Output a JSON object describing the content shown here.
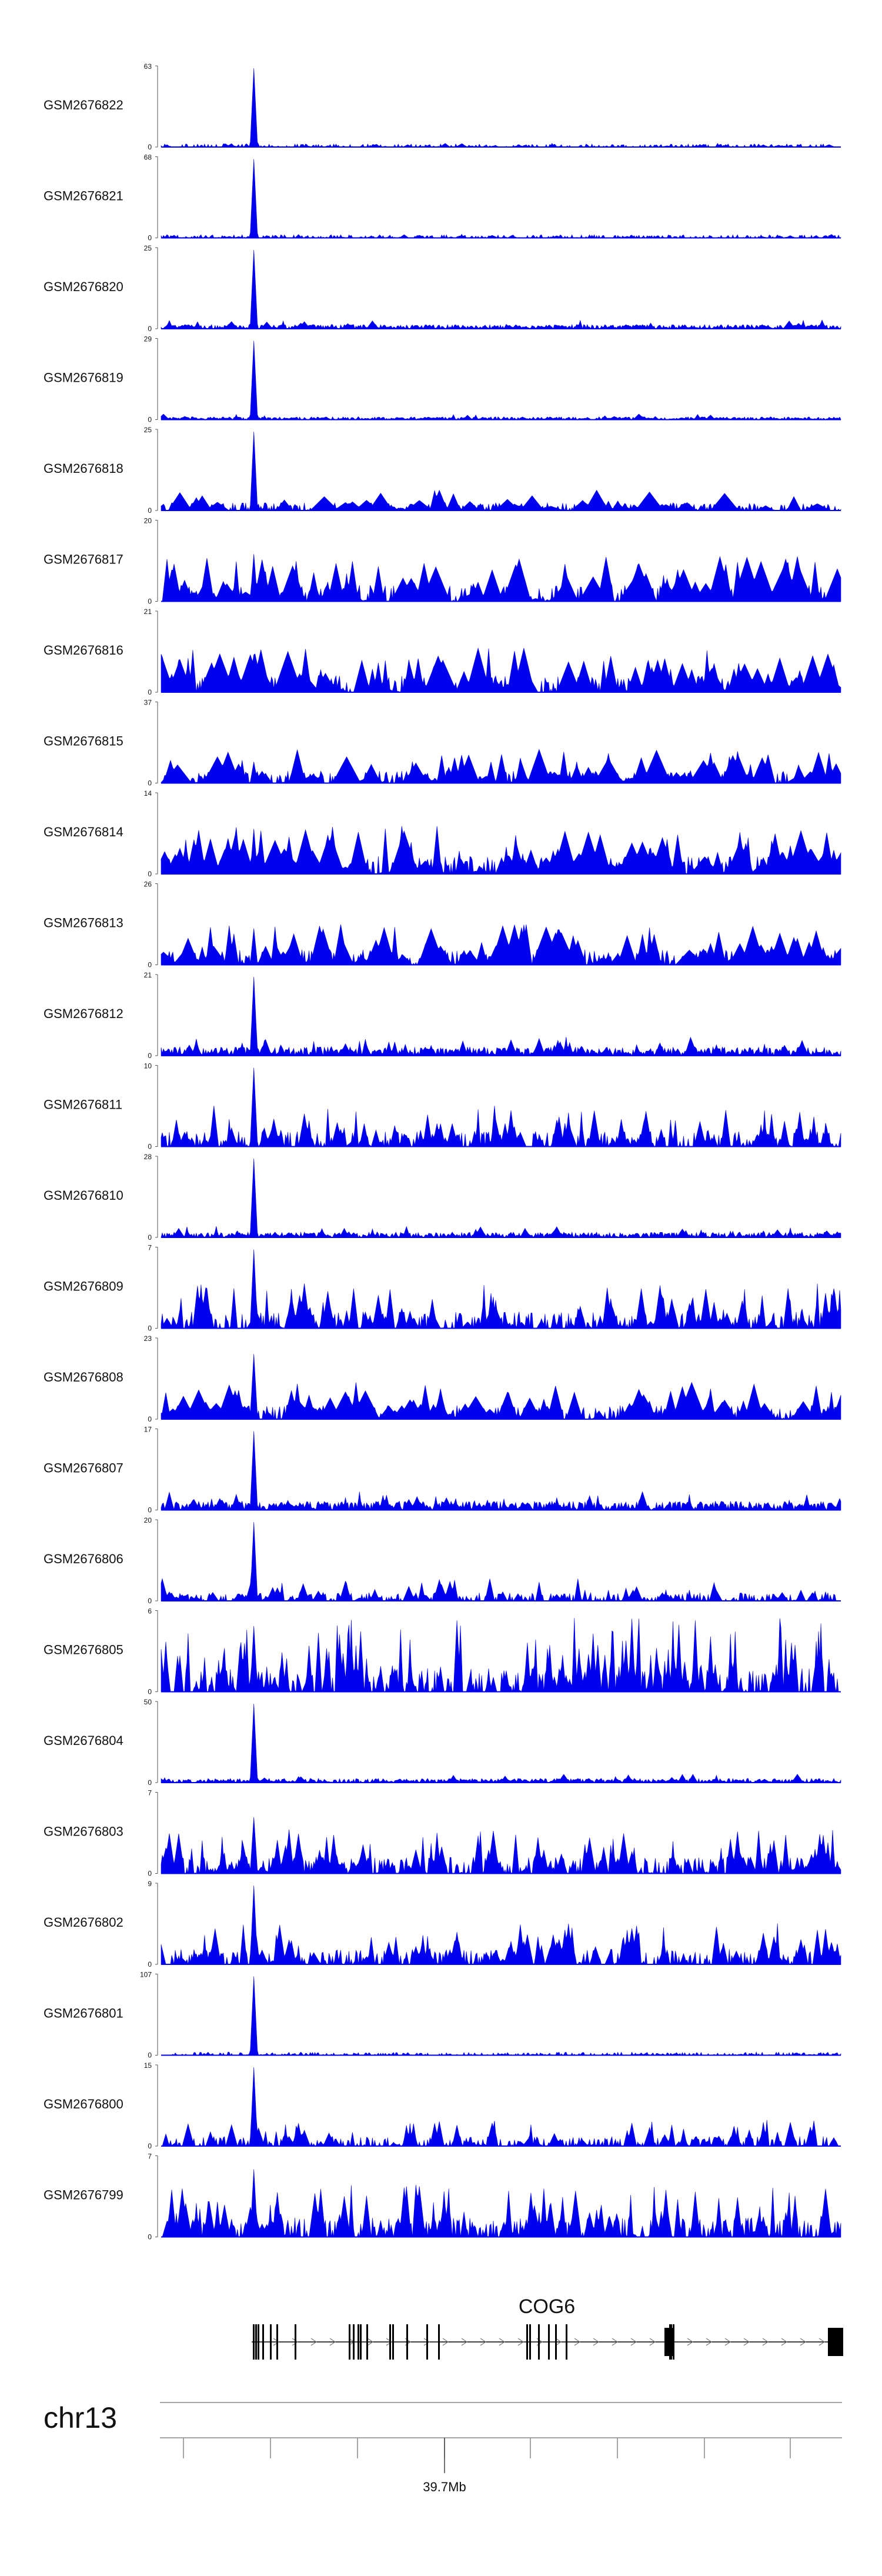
{
  "tracks": [
    {
      "id": "GSM2676822",
      "ymax": "63",
      "ymin": "0",
      "peak": 63,
      "noise": 0.05,
      "style": "sparse"
    },
    {
      "id": "GSM2676821",
      "ymax": "68",
      "ymin": "0",
      "peak": 68,
      "noise": 0.05,
      "style": "sparse"
    },
    {
      "id": "GSM2676820",
      "ymax": "25",
      "ymin": "0",
      "peak": 25,
      "noise": 0.12,
      "style": "dense"
    },
    {
      "id": "GSM2676819",
      "ymax": "29",
      "ymin": "0",
      "peak": 29,
      "noise": 0.08,
      "style": "dense"
    },
    {
      "id": "GSM2676818",
      "ymax": "25",
      "ymin": "0",
      "peak": 25,
      "noise": 0.28,
      "style": "triangles"
    },
    {
      "id": "GSM2676817",
      "ymax": "20",
      "ymin": "0",
      "peak": 12,
      "noise": 0.6,
      "style": "triangles"
    },
    {
      "id": "GSM2676816",
      "ymax": "21",
      "ymin": "0",
      "peak": 10,
      "noise": 0.6,
      "style": "triangles"
    },
    {
      "id": "GSM2676815",
      "ymax": "37",
      "ymin": "0",
      "peak": 10,
      "noise": 0.45,
      "style": "triangles"
    },
    {
      "id": "GSM2676814",
      "ymax": "14",
      "ymin": "0",
      "peak": 8,
      "noise": 0.65,
      "style": "triangles"
    },
    {
      "id": "GSM2676813",
      "ymax": "26",
      "ymin": "0",
      "peak": 12,
      "noise": 0.55,
      "style": "triangles"
    },
    {
      "id": "GSM2676812",
      "ymax": "21",
      "ymin": "0",
      "peak": 21,
      "noise": 0.25,
      "style": "dense"
    },
    {
      "id": "GSM2676811",
      "ymax": "10",
      "ymin": "0",
      "peak": 10,
      "noise": 0.55,
      "style": "mixed"
    },
    {
      "id": "GSM2676810",
      "ymax": "28",
      "ymin": "0",
      "peak": 28,
      "noise": 0.15,
      "style": "dense"
    },
    {
      "id": "GSM2676809",
      "ymax": "7",
      "ymin": "0",
      "peak": 7,
      "noise": 0.6,
      "style": "mixed"
    },
    {
      "id": "GSM2676808",
      "ymax": "23",
      "ymin": "0",
      "peak": 19,
      "noise": 0.5,
      "style": "triangles"
    },
    {
      "id": "GSM2676807",
      "ymax": "17",
      "ymin": "0",
      "peak": 17,
      "noise": 0.25,
      "style": "dense"
    },
    {
      "id": "GSM2676806",
      "ymax": "20",
      "ymin": "0",
      "peak": 20,
      "noise": 0.3,
      "style": "mixed"
    },
    {
      "id": "GSM2676805",
      "ymax": "6",
      "ymin": "0",
      "peak": 5,
      "noise": 0.85,
      "style": "spiky"
    },
    {
      "id": "GSM2676804",
      "ymax": "50",
      "ymin": "0",
      "peak": 50,
      "noise": 0.12,
      "style": "dense"
    },
    {
      "id": "GSM2676803",
      "ymax": "7",
      "ymin": "0",
      "peak": 5,
      "noise": 0.6,
      "style": "mixed"
    },
    {
      "id": "GSM2676802",
      "ymax": "9",
      "ymin": "0",
      "peak": 9,
      "noise": 0.55,
      "style": "mixed"
    },
    {
      "id": "GSM2676801",
      "ymax": "107",
      "ymin": "0",
      "peak": 107,
      "noise": 0.02,
      "style": "sparse"
    },
    {
      "id": "GSM2676800",
      "ymax": "15",
      "ymin": "0",
      "peak": 15,
      "noise": 0.35,
      "style": "mixed"
    },
    {
      "id": "GSM2676799",
      "ymax": "7",
      "ymin": "0",
      "peak": 6,
      "noise": 0.7,
      "style": "mixed"
    }
  ],
  "gene": {
    "name": "COG6"
  },
  "chromosome": {
    "label": "chr13",
    "position_label": "39.7Mb"
  },
  "colors": {
    "signal": "#0000ee",
    "axis": "#555555",
    "text": "#111111",
    "gene": "#000000",
    "ruler": "#888888"
  }
}
